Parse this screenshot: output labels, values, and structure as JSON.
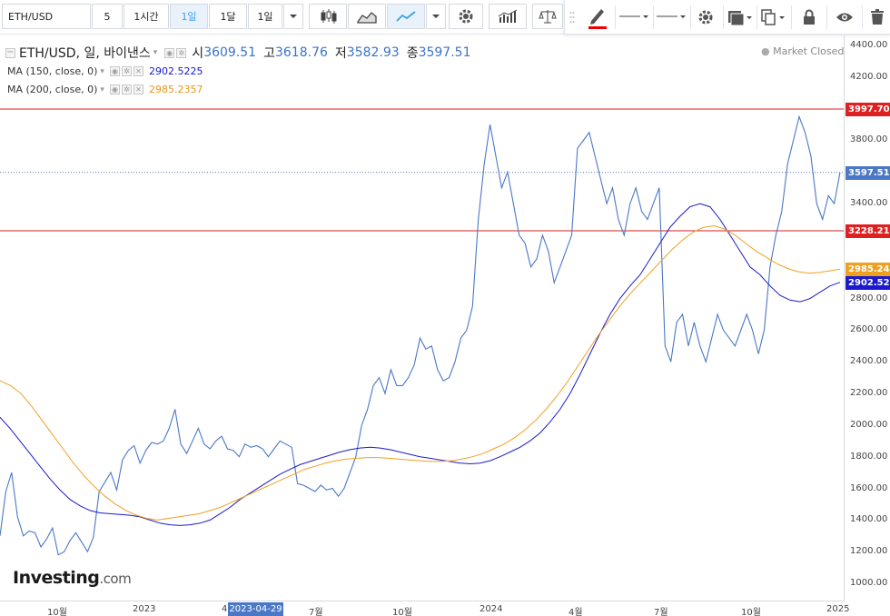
{
  "toolbar": {
    "symbol": "ETH/USD",
    "interval_5": "5",
    "interval_1h": "1시간",
    "interval_1d": "1일",
    "interval_1mo": "1달",
    "interval_1d_dropdown": "1일",
    "chart_types": [
      "candle-icon",
      "area-icon",
      "line-icon"
    ],
    "drawing_icons": [
      "pencil-icon",
      "line-style-icon",
      "line-width-icon",
      "settings-icon",
      "fill-icon",
      "copy-icon",
      "lock-icon",
      "eye-icon"
    ]
  },
  "legend": {
    "title": "ETH/USD, 일, 바이낸스",
    "open_label": "시",
    "open": "3609.51",
    "high_label": "고",
    "high": "3618.76",
    "low_label": "저",
    "low": "3582.93",
    "close_label": "종",
    "close": "3597.51",
    "ma150": {
      "label": "MA (150, close, 0)",
      "value": "2902.5225",
      "color": "#1a1acc"
    },
    "ma200": {
      "label": "MA (200, close, 0)",
      "value": "2985.2357",
      "color": "#f0a020"
    }
  },
  "market_status": "Market Closed",
  "logo": {
    "text": "Investing",
    "suffix": ".com"
  },
  "price_axis": {
    "ticks": [
      "4400.00",
      "4200.00",
      "4000.00",
      "3800.00",
      "3600.00",
      "3400.00",
      "3200.00",
      "3000.00",
      "2800.00",
      "2600.00",
      "2400.00",
      "2200.00",
      "2000.00",
      "1800.00",
      "1600.00",
      "1400.00",
      "1200.00",
      "1000.00"
    ],
    "labels": [
      {
        "text": "3997.70",
        "color": "#e02020"
      },
      {
        "text": "3597.51",
        "color": "#4a78c7"
      },
      {
        "text": "3228.21",
        "color": "#e02020"
      },
      {
        "text": "2985.24",
        "color": "#f0a020"
      },
      {
        "text": "2902.52",
        "color": "#1a1acc"
      }
    ]
  },
  "time_axis": {
    "ticks": [
      "10월",
      "2023",
      "4",
      "7월",
      "10월",
      "2024",
      "4월",
      "7월",
      "10월",
      "2025"
    ],
    "cursor_date": "2023-04-29"
  },
  "chart_data": {
    "type": "line",
    "ylim": [
      950,
      4450
    ],
    "hlines": [
      3997.7,
      3228.21
    ],
    "last_price": 3597.51,
    "series": [
      {
        "name": "ETH/USD",
        "color": "#4a78c7",
        "values": [
          1300,
          1580,
          1700,
          1420,
          1300,
          1330,
          1320,
          1230,
          1280,
          1350,
          1180,
          1200,
          1270,
          1320,
          1260,
          1200,
          1290,
          1580,
          1640,
          1700,
          1590,
          1780,
          1840,
          1870,
          1760,
          1840,
          1890,
          1880,
          1900,
          1980,
          2100,
          1880,
          1820,
          1900,
          1980,
          1880,
          1850,
          1900,
          1930,
          1850,
          1840,
          1800,
          1880,
          1860,
          1870,
          1850,
          1800,
          1850,
          1900,
          1880,
          1860,
          1630,
          1620,
          1600,
          1580,
          1620,
          1590,
          1600,
          1550,
          1600,
          1700,
          1800,
          2000,
          2100,
          2250,
          2300,
          2200,
          2350,
          2250,
          2250,
          2300,
          2380,
          2550,
          2480,
          2500,
          2350,
          2280,
          2300,
          2400,
          2550,
          2600,
          2750,
          3300,
          3650,
          3900,
          3700,
          3500,
          3600,
          3400,
          3200,
          3150,
          3000,
          3050,
          3200,
          3100,
          2900,
          3000,
          3100,
          3200,
          3750,
          3800,
          3850,
          3700,
          3550,
          3400,
          3500,
          3300,
          3200,
          3400,
          3500,
          3350,
          3300,
          3400,
          3500,
          2500,
          2400,
          2650,
          2700,
          2500,
          2650,
          2500,
          2400,
          2550,
          2700,
          2600,
          2550,
          2500,
          2600,
          2700,
          2600,
          2450,
          2600,
          3000,
          3200,
          3350,
          3650,
          3800,
          3950,
          3850,
          3700,
          3400,
          3300,
          3450,
          3400,
          3597.51
        ]
      },
      {
        "name": "MA (150, close, 0)",
        "color": "#1a1acc",
        "values": [
          2050,
          1980,
          1900,
          1820,
          1740,
          1660,
          1590,
          1530,
          1490,
          1460,
          1445,
          1440,
          1435,
          1430,
          1420,
          1400,
          1380,
          1370,
          1365,
          1370,
          1380,
          1400,
          1440,
          1480,
          1530,
          1570,
          1610,
          1650,
          1690,
          1720,
          1750,
          1770,
          1790,
          1810,
          1830,
          1845,
          1855,
          1860,
          1855,
          1845,
          1830,
          1815,
          1800,
          1790,
          1780,
          1770,
          1760,
          1755,
          1760,
          1775,
          1800,
          1830,
          1860,
          1900,
          1950,
          2020,
          2100,
          2200,
          2320,
          2450,
          2580,
          2700,
          2800,
          2880,
          2950,
          3050,
          3150,
          3250,
          3320,
          3380,
          3400,
          3380,
          3300,
          3200,
          3100,
          3000,
          2950,
          2880,
          2820,
          2790,
          2780,
          2800,
          2840,
          2880,
          2902.52
        ]
      },
      {
        "name": "MA (200, close, 0)",
        "color": "#f0a020",
        "values": [
          2280,
          2250,
          2200,
          2120,
          2030,
          1940,
          1850,
          1760,
          1680,
          1610,
          1550,
          1500,
          1460,
          1430,
          1410,
          1400,
          1410,
          1420,
          1430,
          1440,
          1460,
          1480,
          1510,
          1540,
          1570,
          1600,
          1630,
          1660,
          1690,
          1720,
          1740,
          1760,
          1775,
          1785,
          1790,
          1795,
          1795,
          1790,
          1785,
          1780,
          1775,
          1770,
          1770,
          1775,
          1785,
          1800,
          1820,
          1850,
          1880,
          1920,
          1970,
          2030,
          2100,
          2180,
          2270,
          2370,
          2470,
          2570,
          2660,
          2750,
          2830,
          2900,
          2970,
          3040,
          3110,
          3170,
          3220,
          3250,
          3260,
          3240,
          3200,
          3150,
          3100,
          3060,
          3020,
          2990,
          2970,
          2960,
          2965,
          2975,
          2985.24
        ]
      }
    ]
  }
}
